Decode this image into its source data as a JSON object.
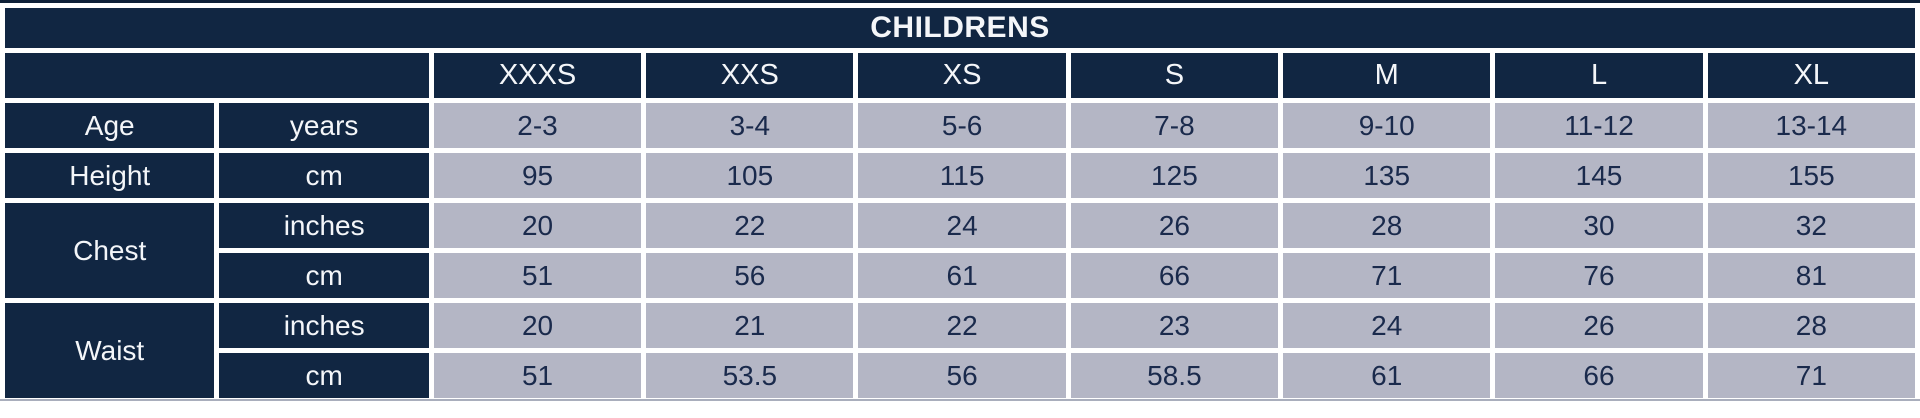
{
  "chart_data": {
    "type": "table",
    "title": "CHILDRENS",
    "size_headers": [
      "XXXS",
      "XXS",
      "XS",
      "S",
      "M",
      "L",
      "XL"
    ],
    "rows": [
      {
        "label": "Age",
        "unit": "years",
        "values": [
          "2-3",
          "3-4",
          "5-6",
          "7-8",
          "9-10",
          "11-12",
          "13-14"
        ]
      },
      {
        "label": "Height",
        "unit": "cm",
        "values": [
          "95",
          "105",
          "115",
          "125",
          "135",
          "145",
          "155"
        ]
      },
      {
        "label": "Chest",
        "unit": "inches",
        "values": [
          "20",
          "22",
          "24",
          "26",
          "28",
          "30",
          "32"
        ]
      },
      {
        "unit": "cm",
        "values": [
          "51",
          "56",
          "61",
          "66",
          "71",
          "76",
          "81"
        ]
      },
      {
        "label": "Waist",
        "unit": "inches",
        "values": [
          "20",
          "21",
          "22",
          "23",
          "24",
          "26",
          "28"
        ]
      },
      {
        "unit": "cm",
        "values": [
          "51",
          "53.5",
          "56",
          "58.5",
          "61",
          "66",
          "71"
        ]
      }
    ]
  },
  "colors": {
    "navy": "#112642",
    "cell": "#b4b6c5",
    "gap": "#ffffff",
    "text_on_navy": "#f4f6f9",
    "text_on_cell": "#1a2a4c",
    "top_border": "#0e2038",
    "bottom_line": "#a9aebc"
  }
}
